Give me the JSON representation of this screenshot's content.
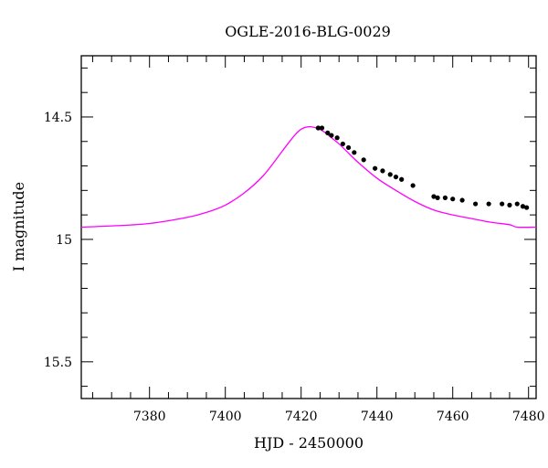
{
  "chart_data": {
    "type": "scatter",
    "title": "OGLE-2016-BLG-0029",
    "xlabel": "HJD - 2450000",
    "ylabel": "I magnitude",
    "xlim": [
      7362,
      7482
    ],
    "ylim": [
      15.65,
      14.25
    ],
    "y_inverted": true,
    "grid": false,
    "x_major_ticks": [
      7380,
      7400,
      7420,
      7440,
      7460,
      7480
    ],
    "x_tick_labels": [
      "7380",
      "7400",
      "7420",
      "7440",
      "7460",
      "7480"
    ],
    "y_major_ticks": [
      14.5,
      15,
      15.5
    ],
    "y_tick_labels": [
      "14.5",
      "15",
      "15.5"
    ],
    "model_color": "#ff00ff",
    "point_color": "#000000",
    "series": [
      {
        "kind": "model",
        "points": [
          [
            7362,
            14.95
          ],
          [
            7370,
            14.945
          ],
          [
            7380,
            14.935
          ],
          [
            7390,
            14.91
          ],
          [
            7395,
            14.89
          ],
          [
            7400,
            14.86
          ],
          [
            7405,
            14.81
          ],
          [
            7410,
            14.74
          ],
          [
            7415,
            14.64
          ],
          [
            7418,
            14.58
          ],
          [
            7420,
            14.55
          ],
          [
            7422,
            14.54
          ],
          [
            7424,
            14.545
          ],
          [
            7426,
            14.56
          ],
          [
            7428,
            14.585
          ],
          [
            7430,
            14.61
          ],
          [
            7432,
            14.64
          ],
          [
            7435,
            14.685
          ],
          [
            7440,
            14.75
          ],
          [
            7445,
            14.8
          ],
          [
            7450,
            14.845
          ],
          [
            7455,
            14.88
          ],
          [
            7460,
            14.9
          ],
          [
            7465,
            14.915
          ],
          [
            7470,
            14.93
          ],
          [
            7475,
            14.94
          ],
          [
            7477,
            14.95
          ],
          [
            7482,
            14.95
          ]
        ]
      },
      {
        "kind": "data",
        "points": [
          [
            7424.5,
            14.545
          ],
          [
            7425.5,
            14.545
          ],
          [
            7427.0,
            14.565
          ],
          [
            7428.0,
            14.575
          ],
          [
            7429.5,
            14.585
          ],
          [
            7431.0,
            14.61
          ],
          [
            7432.5,
            14.625
          ],
          [
            7434.0,
            14.645
          ],
          [
            7436.5,
            14.675
          ],
          [
            7439.5,
            14.71
          ],
          [
            7441.5,
            14.72
          ],
          [
            7443.5,
            14.735
          ],
          [
            7445.0,
            14.745
          ],
          [
            7446.5,
            14.755
          ],
          [
            7449.5,
            14.78
          ],
          [
            7455.0,
            14.825
          ],
          [
            7456.0,
            14.83
          ],
          [
            7458.0,
            14.83
          ],
          [
            7460.0,
            14.835
          ],
          [
            7462.5,
            14.84
          ],
          [
            7466.0,
            14.855
          ],
          [
            7469.5,
            14.855
          ],
          [
            7473.0,
            14.855
          ],
          [
            7475.0,
            14.86
          ],
          [
            7477.0,
            14.855
          ],
          [
            7478.5,
            14.865
          ],
          [
            7479.5,
            14.87
          ]
        ]
      }
    ]
  }
}
